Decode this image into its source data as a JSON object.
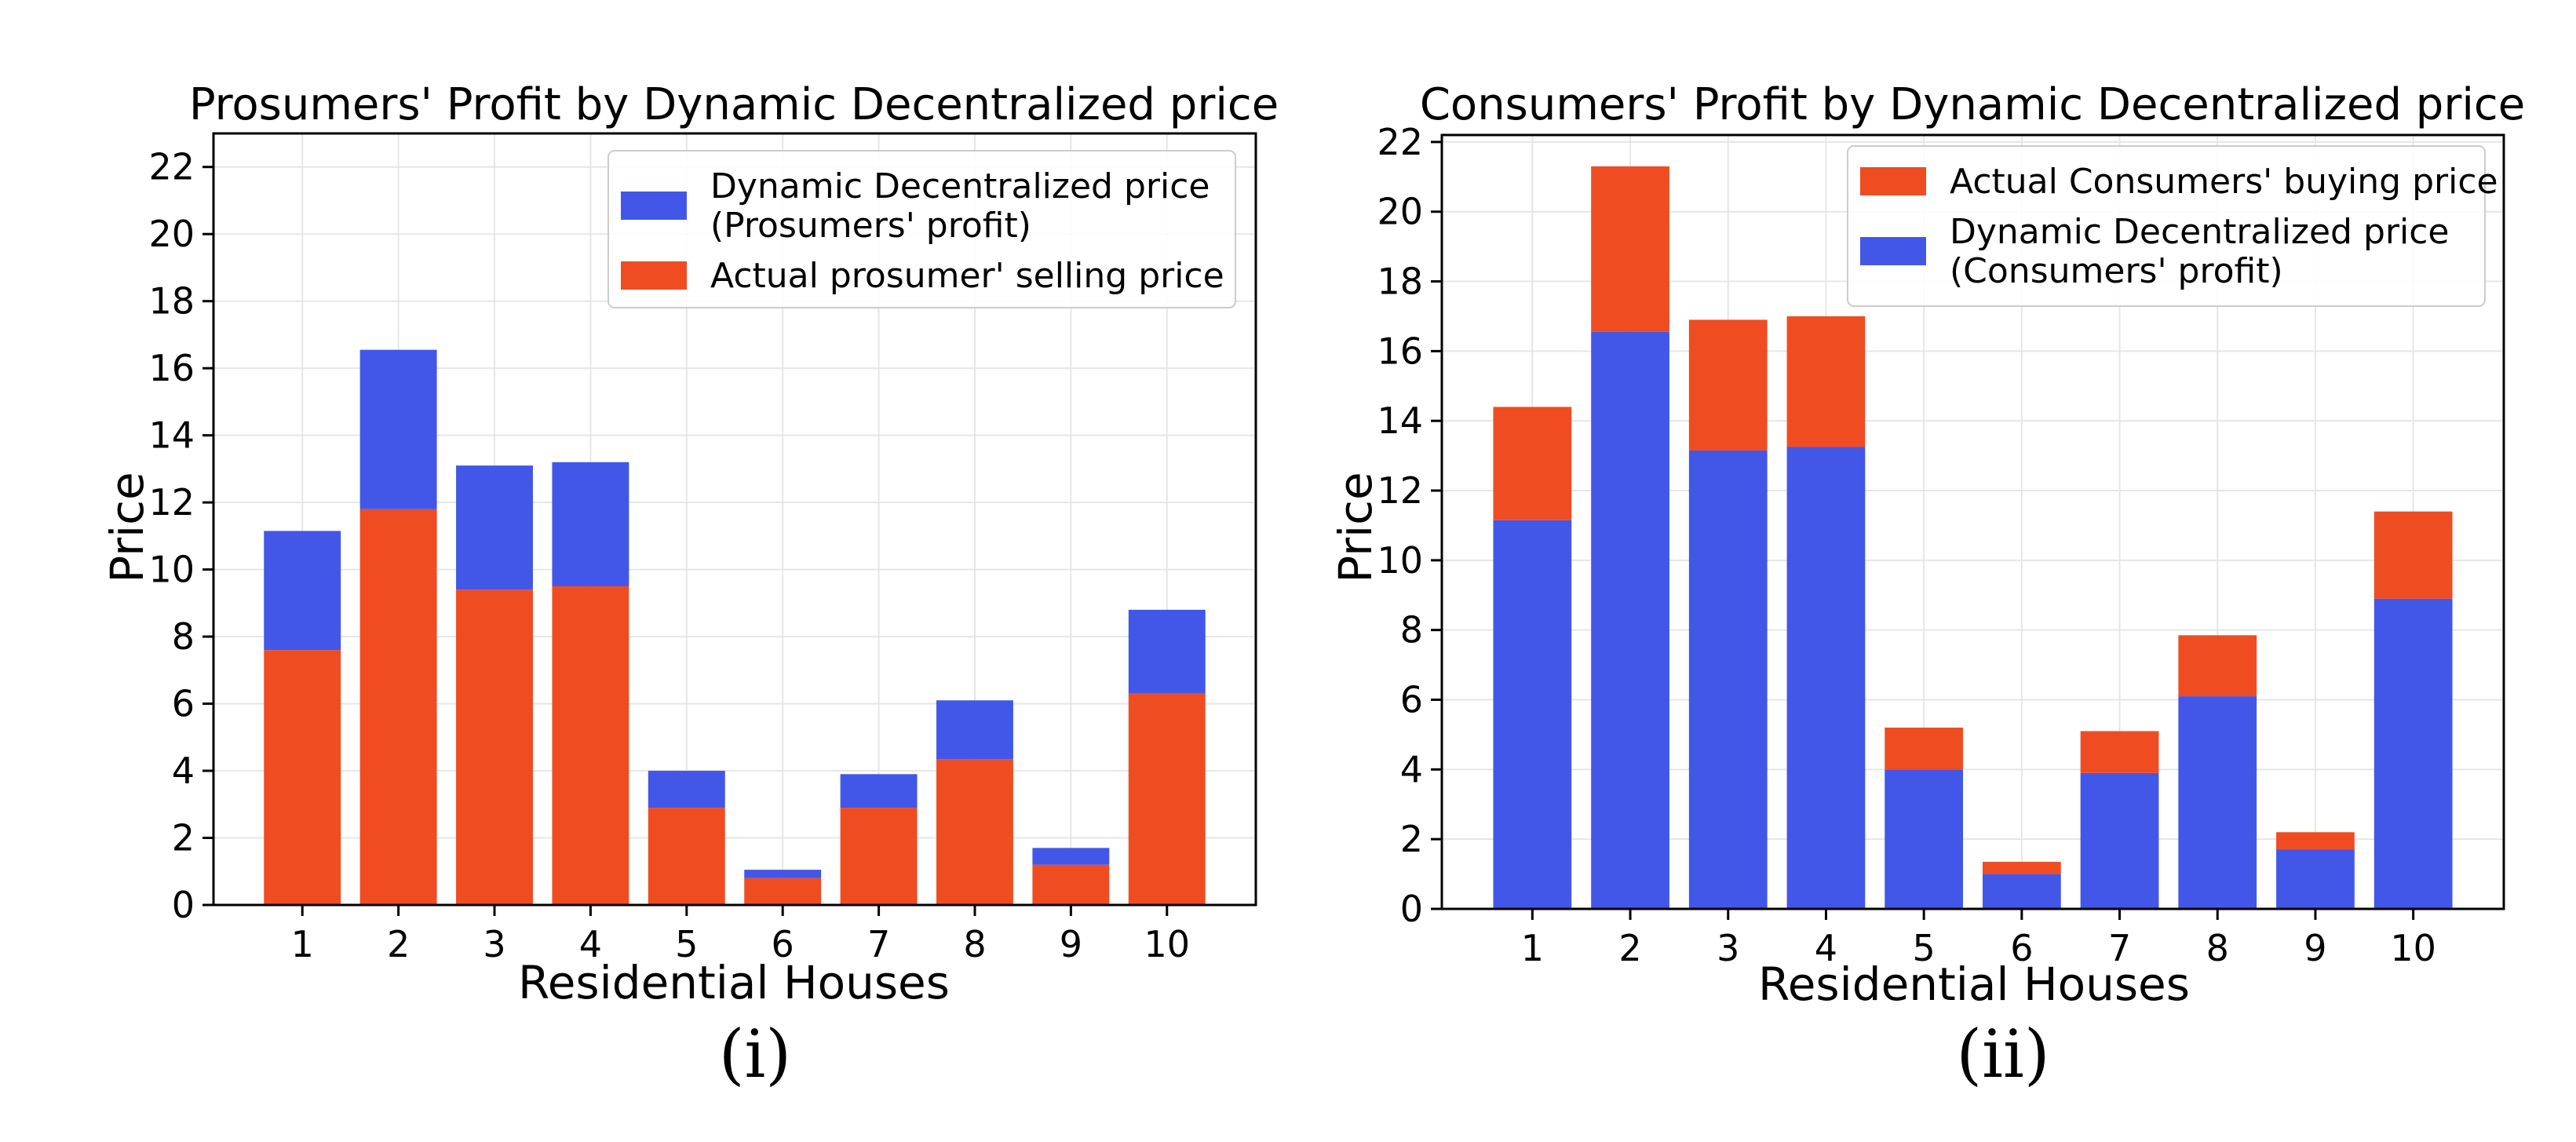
{
  "chart_data": [
    {
      "type": "bar",
      "stacked": true,
      "title": "Prosumers' Profit by Dynamic Decentralized price",
      "xlabel": "Residential Houses",
      "ylabel": "Price",
      "caption": "(i)",
      "categories": [
        "1",
        "2",
        "3",
        "4",
        "5",
        "6",
        "7",
        "8",
        "9",
        "10"
      ],
      "ylim": [
        0,
        23
      ],
      "yticks": [
        "0",
        "2",
        "4",
        "6",
        "8",
        "10",
        "12",
        "14",
        "16",
        "18",
        "20",
        "22"
      ],
      "grid": true,
      "legend_position": "top-right",
      "series": [
        {
          "name": "Actual prosumer' selling price",
          "color": "#f04c22",
          "values": [
            7.6,
            11.8,
            9.4,
            9.5,
            2.9,
            0.8,
            2.9,
            4.35,
            1.2,
            6.3
          ]
        },
        {
          "name": "Dynamic Decentralized price\n(Prosumers' profit)",
          "color": "#4257e8",
          "values": [
            3.55,
            4.75,
            3.7,
            3.7,
            1.1,
            0.25,
            1.0,
            1.75,
            0.5,
            2.5
          ]
        }
      ],
      "legend": [
        {
          "label": "Dynamic Decentralized price\n(Prosumers' profit)",
          "color": "#4257e8"
        },
        {
          "label": "Actual prosumer' selling price",
          "color": "#f04c22"
        }
      ]
    },
    {
      "type": "bar",
      "stacked": true,
      "title": "Consumers' Profit by Dynamic Decentralized price",
      "xlabel": "Residential Houses",
      "ylabel": "Price",
      "caption": "(ii)",
      "categories": [
        "1",
        "2",
        "3",
        "4",
        "5",
        "6",
        "7",
        "8",
        "9",
        "10"
      ],
      "ylim": [
        0,
        22.2
      ],
      "yticks": [
        "0",
        "2",
        "4",
        "6",
        "8",
        "10",
        "12",
        "14",
        "16",
        "18",
        "20",
        "22"
      ],
      "grid": true,
      "legend_position": "top-right",
      "series": [
        {
          "name": "Dynamic Decentralized price\n(Consumers' profit)",
          "color": "#4257e8",
          "values": [
            11.15,
            16.55,
            13.15,
            13.25,
            4.0,
            1.0,
            3.9,
            6.1,
            1.7,
            8.9
          ]
        },
        {
          "name": "Actual Consumers' buying price",
          "color": "#f04c22",
          "values": [
            3.25,
            4.75,
            3.75,
            3.75,
            1.2,
            0.35,
            1.2,
            1.75,
            0.5,
            2.5
          ]
        }
      ],
      "legend": [
        {
          "label": "Actual Consumers' buying price",
          "color": "#f04c22"
        },
        {
          "label": "Dynamic Decentralized price\n(Consumers' profit)",
          "color": "#4257e8"
        }
      ]
    }
  ]
}
